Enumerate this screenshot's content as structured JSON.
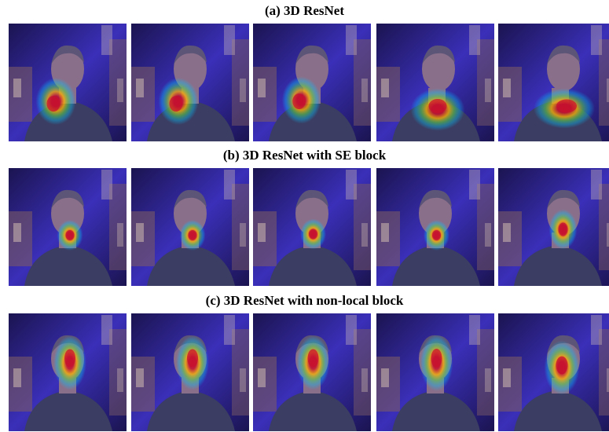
{
  "sections": [
    {
      "title": "(a) 3D ResNet",
      "frames": [
        {
          "head_turn": "front",
          "heatmap": {
            "center": [
              0.4,
              0.66
            ],
            "size": [
              0.34,
              0.4
            ],
            "peak": [
              0.38,
              0.68
            ]
          }
        },
        {
          "head_turn": "front",
          "heatmap": {
            "center": [
              0.4,
              0.66
            ],
            "size": [
              0.34,
              0.4
            ],
            "peak": [
              0.38,
              0.68
            ]
          }
        },
        {
          "head_turn": "front",
          "heatmap": {
            "center": [
              0.41,
              0.65
            ],
            "size": [
              0.33,
              0.4
            ],
            "peak": [
              0.39,
              0.66
            ]
          }
        },
        {
          "head_turn": "slight-right",
          "heatmap": {
            "center": [
              0.52,
              0.73
            ],
            "size": [
              0.46,
              0.36
            ],
            "peak": [
              0.52,
              0.7
            ]
          }
        },
        {
          "head_turn": "right",
          "heatmap": {
            "center": [
              0.56,
              0.72
            ],
            "size": [
              0.52,
              0.34
            ],
            "peak": [
              0.58,
              0.7
            ]
          }
        }
      ]
    },
    {
      "title": "(b) 3D ResNet with SE block",
      "frames": [
        {
          "head_turn": "front",
          "heatmap": {
            "center": [
              0.52,
              0.57
            ],
            "size": [
              0.22,
              0.26
            ],
            "peak": [
              0.52,
              0.57
            ]
          }
        },
        {
          "head_turn": "front",
          "heatmap": {
            "center": [
              0.52,
              0.57
            ],
            "size": [
              0.22,
              0.26
            ],
            "peak": [
              0.52,
              0.57
            ]
          }
        },
        {
          "head_turn": "front",
          "heatmap": {
            "center": [
              0.51,
              0.56
            ],
            "size": [
              0.22,
              0.26
            ],
            "peak": [
              0.51,
              0.56
            ]
          }
        },
        {
          "head_turn": "front",
          "heatmap": {
            "center": [
              0.51,
              0.57
            ],
            "size": [
              0.22,
              0.26
            ],
            "peak": [
              0.51,
              0.57
            ]
          }
        },
        {
          "head_turn": "right",
          "heatmap": {
            "center": [
              0.55,
              0.52
            ],
            "size": [
              0.24,
              0.34
            ],
            "peak": [
              0.55,
              0.52
            ]
          }
        }
      ]
    },
    {
      "title": "(c) 3D ResNet with non-local block",
      "frames": [
        {
          "head_turn": "front",
          "heatmap": {
            "center": [
              0.52,
              0.42
            ],
            "size": [
              0.28,
              0.46
            ],
            "peak": [
              0.52,
              0.38
            ]
          }
        },
        {
          "head_turn": "front",
          "heatmap": {
            "center": [
              0.52,
              0.42
            ],
            "size": [
              0.28,
              0.46
            ],
            "peak": [
              0.52,
              0.38
            ]
          }
        },
        {
          "head_turn": "front",
          "heatmap": {
            "center": [
              0.51,
              0.42
            ],
            "size": [
              0.28,
              0.46
            ],
            "peak": [
              0.51,
              0.38
            ]
          }
        },
        {
          "head_turn": "front",
          "heatmap": {
            "center": [
              0.51,
              0.42
            ],
            "size": [
              0.28,
              0.48
            ],
            "peak": [
              0.51,
              0.38
            ]
          }
        },
        {
          "head_turn": "right",
          "heatmap": {
            "center": [
              0.54,
              0.46
            ],
            "size": [
              0.3,
              0.46
            ],
            "peak": [
              0.54,
              0.44
            ]
          }
        }
      ]
    }
  ],
  "colors": {
    "background_dark": "#1b1450",
    "background_blue": "#3a2fb8",
    "studio_panel": "#7a5a66",
    "studio_light": "#d9c6b6",
    "shirt": "#3b3d63",
    "skin": "#8a6f8a",
    "hair": "#5d5577",
    "heat_hot": "#c8102e",
    "heat_warm": "#ffb300",
    "heat_mid": "#5ad34a",
    "heat_cool": "#00c8ff"
  }
}
